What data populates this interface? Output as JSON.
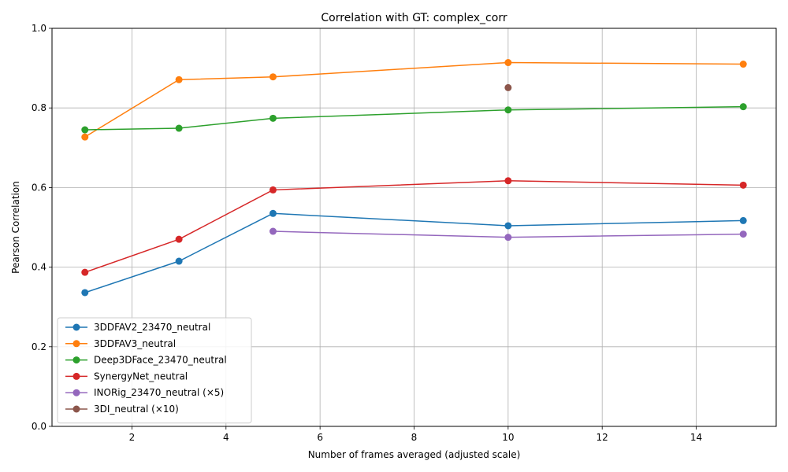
{
  "chart_data": {
    "type": "line",
    "title": "Correlation with GT: complex_corr",
    "xlabel": "Number of frames averaged (adjusted scale)",
    "ylabel": "Pearson Correlation",
    "xlim": [
      0.3,
      15.7
    ],
    "ylim": [
      0.0,
      1.0
    ],
    "xticks": [
      2,
      4,
      6,
      8,
      10,
      12,
      14
    ],
    "yticks": [
      0.0,
      0.2,
      0.4,
      0.6,
      0.8,
      1.0
    ],
    "xtick_labels": [
      "2",
      "4",
      "6",
      "8",
      "10",
      "12",
      "14"
    ],
    "ytick_labels": [
      "0.0",
      "0.2",
      "0.4",
      "0.6",
      "0.8",
      "1.0"
    ],
    "grid": true,
    "legend_position": "lower-left",
    "series": [
      {
        "name": "3DDFAV2_23470_neutral",
        "color": "#1f77b4",
        "x": [
          1,
          3,
          5,
          10,
          15
        ],
        "y": [
          0.336,
          0.415,
          0.535,
          0.504,
          0.517
        ]
      },
      {
        "name": "3DDFAV3_neutral",
        "color": "#ff7f0e",
        "x": [
          1,
          3,
          5,
          10,
          15
        ],
        "y": [
          0.727,
          0.871,
          0.878,
          0.914,
          0.91
        ]
      },
      {
        "name": "Deep3DFace_23470_neutral",
        "color": "#2ca02c",
        "x": [
          1,
          3,
          5,
          10,
          15
        ],
        "y": [
          0.745,
          0.749,
          0.774,
          0.795,
          0.803
        ]
      },
      {
        "name": "SynergyNet_neutral",
        "color": "#d62728",
        "x": [
          1,
          3,
          5,
          10,
          15
        ],
        "y": [
          0.387,
          0.47,
          0.594,
          0.617,
          0.606
        ]
      },
      {
        "name": "INORig_23470_neutral (×5)",
        "color": "#9467bd",
        "x": [
          5,
          10,
          15
        ],
        "y": [
          0.49,
          0.475,
          0.483
        ]
      },
      {
        "name": "3DI_neutral (×10)",
        "color": "#8c564b",
        "x": [
          10
        ],
        "y": [
          0.851
        ]
      }
    ]
  }
}
